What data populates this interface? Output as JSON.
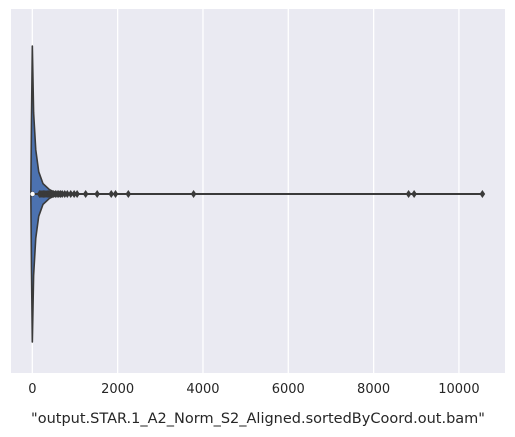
{
  "chart_data": {
    "type": "violin",
    "orientation": "horizontal",
    "xlabel": "\"output.STAR.1_A2_Norm_S2_Aligned.sortedByCoord.out.bam\"",
    "ylabel": "",
    "xlim": [
      -500,
      11080
    ],
    "xticks": [
      0,
      2000,
      4000,
      6000,
      8000,
      10000
    ],
    "xtick_labels": [
      "0",
      "2000",
      "4000",
      "6000",
      "8000",
      "10000"
    ],
    "grid": true,
    "fill_color": "#4c72b0",
    "line_color": "#3a3a3a",
    "background_color": "#eaeaf2",
    "violin": {
      "min": 0,
      "q1": 1,
      "median": 5,
      "q3": 40,
      "max": 10550,
      "density_profile": [
        {
          "x": -35,
          "w": 0.0
        },
        {
          "x": -20,
          "w": 0.5
        },
        {
          "x": 0,
          "w": 1.0
        },
        {
          "x": 30,
          "w": 0.55
        },
        {
          "x": 80,
          "w": 0.3
        },
        {
          "x": 150,
          "w": 0.15
        },
        {
          "x": 250,
          "w": 0.07
        },
        {
          "x": 400,
          "w": 0.03
        },
        {
          "x": 600,
          "w": 0.0
        }
      ]
    },
    "outliers": [
      170,
      200,
      230,
      260,
      290,
      320,
      350,
      380,
      410,
      440,
      470,
      500,
      540,
      580,
      620,
      660,
      700,
      760,
      820,
      900,
      980,
      1050,
      1250,
      1520,
      1850,
      1950,
      2250,
      3780,
      8820,
      8950,
      10550
    ]
  }
}
